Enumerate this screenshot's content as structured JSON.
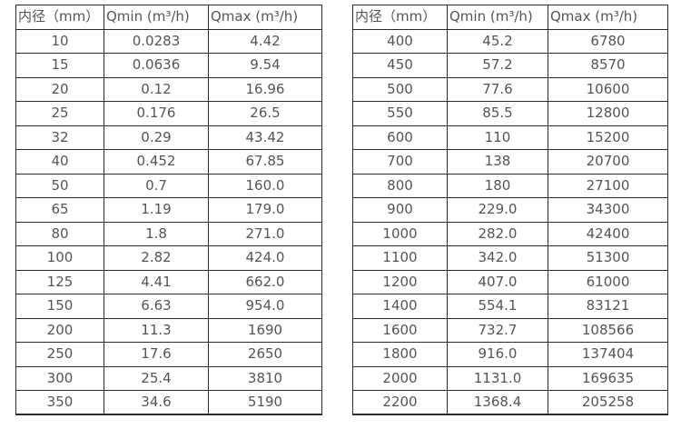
{
  "headers": [
    "内径（mm）",
    "Qmin (m³/h)",
    "Qmax (m³/h)"
  ],
  "colors": {
    "background": "#ffffff",
    "border": "#2b2b2b",
    "text": "#555555"
  },
  "left_table": {
    "rows": [
      [
        "10",
        "0.0283",
        "4.42"
      ],
      [
        "15",
        "0.0636",
        "9.54"
      ],
      [
        "20",
        "0.12",
        "16.96"
      ],
      [
        "25",
        "0.176",
        "26.5"
      ],
      [
        "32",
        "0.29",
        "43.42"
      ],
      [
        "40",
        "0.452",
        "67.85"
      ],
      [
        "50",
        "0.7",
        "160.0"
      ],
      [
        "65",
        "1.19",
        "179.0"
      ],
      [
        "80",
        "1.8",
        "271.0"
      ],
      [
        "100",
        "2.82",
        "424.0"
      ],
      [
        "125",
        "4.41",
        "662.0"
      ],
      [
        "150",
        "6.63",
        "954.0"
      ],
      [
        "200",
        "11.3",
        "1690"
      ],
      [
        "250",
        "17.6",
        "2650"
      ],
      [
        "300",
        "25.4",
        "3810"
      ],
      [
        "350",
        "34.6",
        "5190"
      ]
    ]
  },
  "right_table": {
    "rows": [
      [
        "400",
        "45.2",
        "6780"
      ],
      [
        "450",
        "57.2",
        "8570"
      ],
      [
        "500",
        "77.6",
        "10600"
      ],
      [
        "550",
        "85.5",
        "12800"
      ],
      [
        "600",
        "110",
        "15200"
      ],
      [
        "700",
        "138",
        "20700"
      ],
      [
        "800",
        "180",
        "27100"
      ],
      [
        "900",
        "229.0",
        "34300"
      ],
      [
        "1000",
        "282.0",
        "42400"
      ],
      [
        "1100",
        "342.0",
        "51300"
      ],
      [
        "1200",
        "407.0",
        "61000"
      ],
      [
        "1400",
        "554.1",
        "83121"
      ],
      [
        "1600",
        "732.7",
        "108566"
      ],
      [
        "1800",
        "916.0",
        "137404"
      ],
      [
        "2000",
        "1131.0",
        "169635"
      ],
      [
        "2200",
        "1368.4",
        "205258"
      ]
    ]
  }
}
